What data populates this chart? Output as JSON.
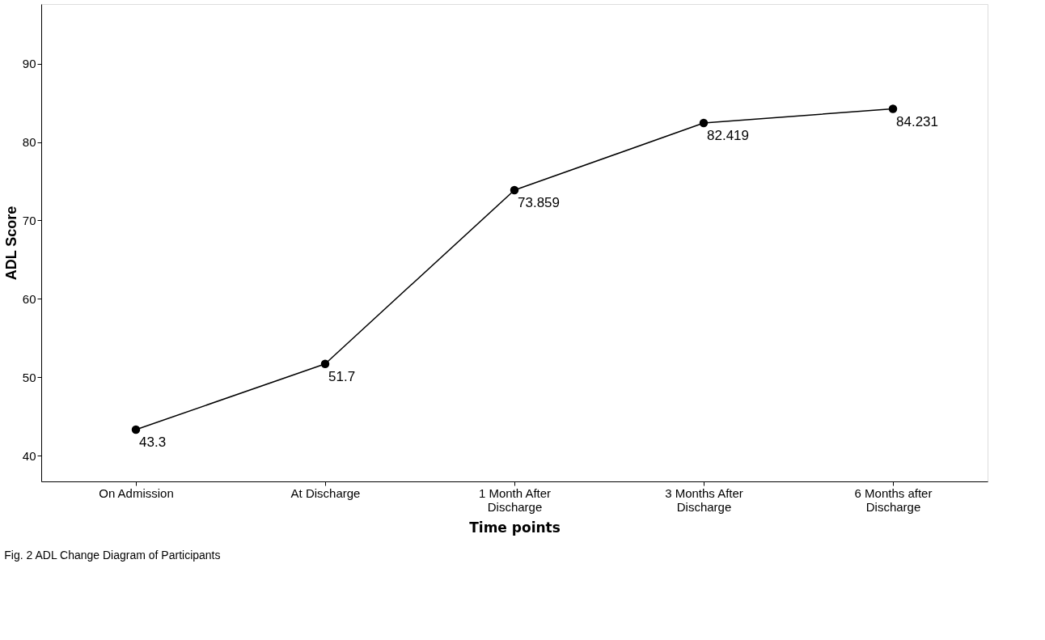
{
  "chart_data": {
    "type": "line",
    "xlabel": "Time points",
    "ylabel": "ADL Score",
    "categories": [
      "On Admission",
      "At Discharge",
      "1 Month After Discharge",
      "3 Months After Discharge",
      "6 Months after Discharge"
    ],
    "series": [
      {
        "color": "#000000",
        "values": [
          43.3,
          51.7,
          73.859,
          82.419,
          84.231
        ]
      }
    ],
    "ylim": [
      36.7,
      97.6
    ],
    "yticks": [
      40,
      50,
      60,
      70,
      80,
      90
    ],
    "grid": false,
    "marker": "circle",
    "line_style": "solid",
    "data_labels": true,
    "annotations": [
      "Fig. 2 ADL Change Diagram of Participants"
    ]
  }
}
